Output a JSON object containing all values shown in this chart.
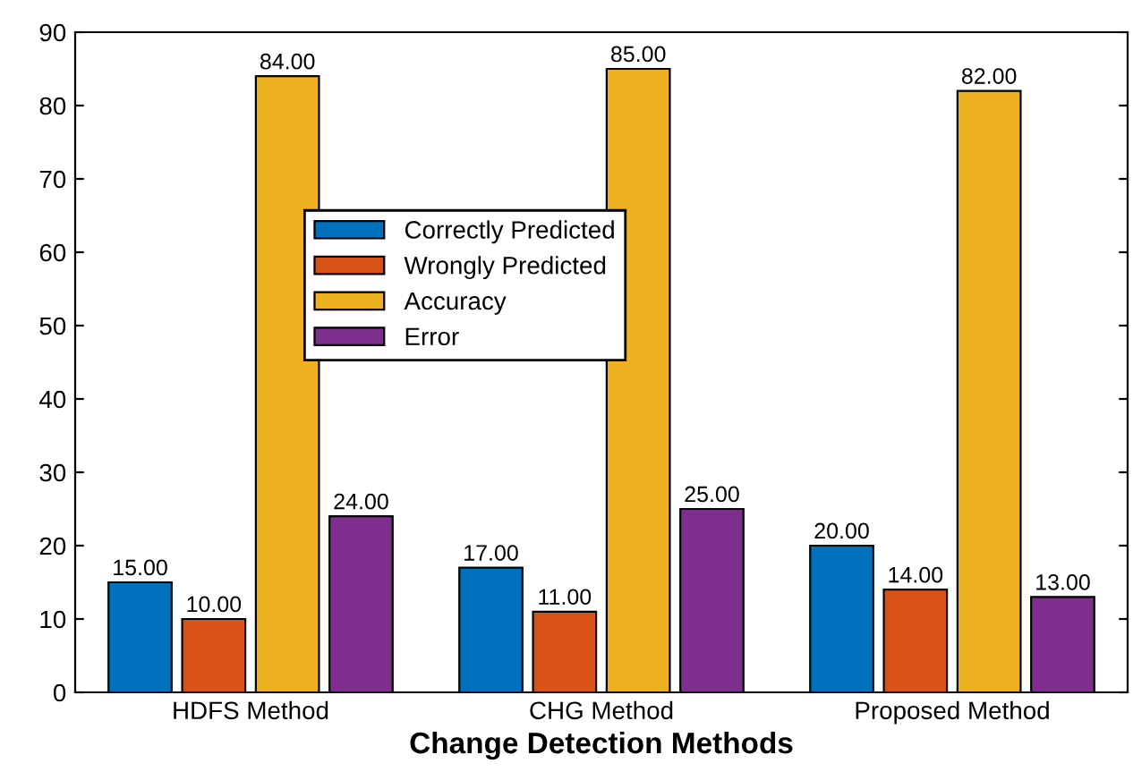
{
  "chart_data": {
    "type": "bar",
    "xlabel": "Change Detection Methods",
    "categories": [
      "HDFS Method",
      "CHG Method",
      "Proposed Method"
    ],
    "series": [
      {
        "name": "Correctly Predicted",
        "color": "#0072bd",
        "values": [
          15,
          17,
          20
        ],
        "value_labels": [
          "15.00",
          "17.00",
          "20.00"
        ]
      },
      {
        "name": "Wrongly Predicted",
        "color": "#d95319",
        "values": [
          10,
          11,
          14
        ],
        "value_labels": [
          "10.00",
          "11.00",
          "14.00"
        ]
      },
      {
        "name": "Accuracy",
        "color": "#edb120",
        "values": [
          84,
          85,
          82
        ],
        "value_labels": [
          "84.00",
          "85.00",
          "82.00"
        ]
      },
      {
        "name": "Error",
        "color": "#7e2f8e",
        "values": [
          24,
          25,
          13
        ],
        "value_labels": [
          "24.00",
          "25.00",
          "13.00"
        ]
      }
    ],
    "ylim": [
      0,
      90
    ],
    "yticks": [
      0,
      10,
      20,
      30,
      40,
      50,
      60,
      70,
      80,
      90
    ],
    "legend": "top left",
    "grid": false
  }
}
